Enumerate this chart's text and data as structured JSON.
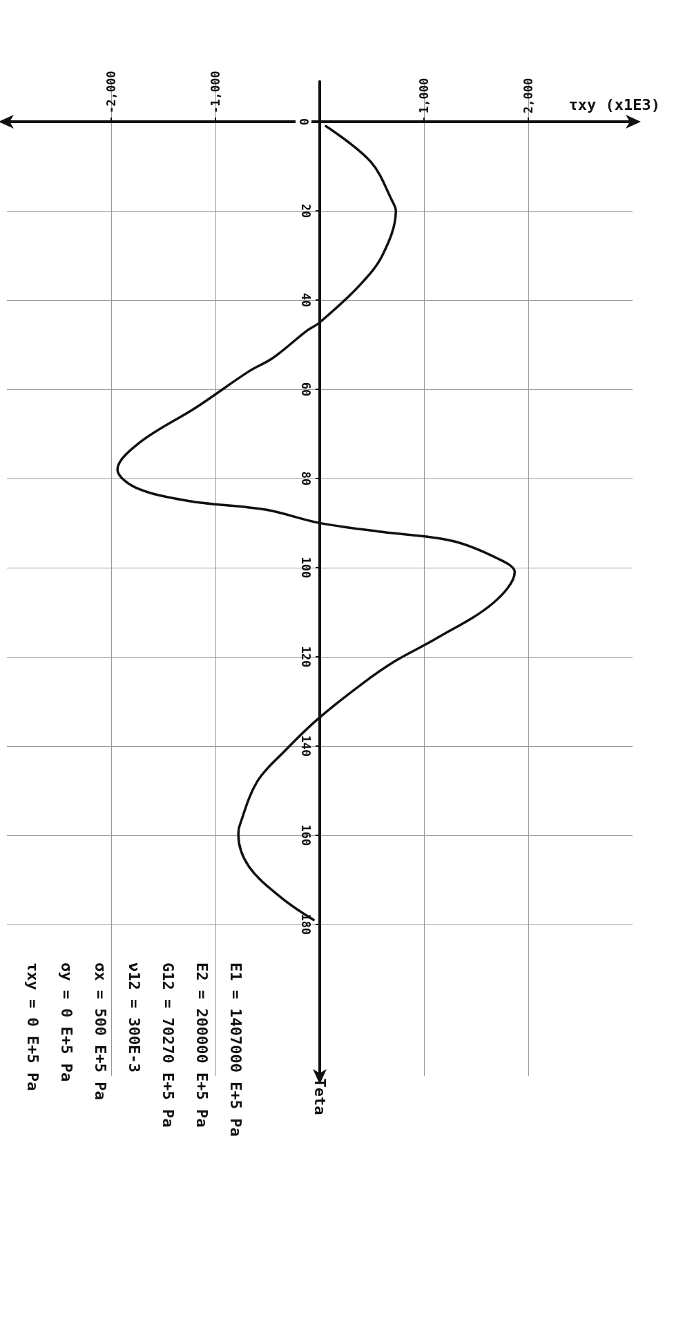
{
  "chart_data": {
    "type": "line",
    "orientation": "horizontal",
    "xlabel": "τxy (x1E3)",
    "ylabel": "Teta",
    "x": [
      1,
      9,
      18,
      20,
      30,
      37,
      45,
      47,
      53,
      56,
      64,
      72,
      78,
      82,
      85,
      87,
      90,
      92,
      94,
      98,
      101,
      108,
      116,
      121,
      126,
      134,
      141,
      148,
      158,
      160,
      167,
      174,
      179
    ],
    "series": [
      {
        "color": "#111111",
        "values": [
          60,
          490,
          700,
          730,
          600,
          370,
          0,
          -130,
          -450,
          -680,
          -1180,
          -1730,
          -1940,
          -1770,
          -1270,
          -520,
          0,
          600,
          1270,
          1710,
          1870,
          1660,
          1110,
          720,
          410,
          -20,
          -330,
          -600,
          -770,
          -780,
          -680,
          -370,
          -60
        ]
      }
    ],
    "xlim": [
      -3000,
      3000
    ],
    "xticks": [
      {
        "value": -2000,
        "label": "-2,000"
      },
      {
        "value": -1000,
        "label": "-1,000"
      },
      {
        "value": 1000,
        "label": "1,000"
      },
      {
        "value": 2000,
        "label": "2,000"
      }
    ],
    "ylim": [
      214,
      -9
    ],
    "yticks": [
      0,
      20,
      40,
      60,
      80,
      100,
      120,
      140,
      160,
      180
    ],
    "grid": true,
    "marker": "none",
    "line_style": "solid",
    "annotations": [
      "E1 = 1407000 E+5 Pa",
      "E2 = 200000 E+5 Pa",
      "G12 = 70270 E+5 Pa",
      "ν12 = 300E-3",
      "σx = 500 E+5 Pa",
      "σy = 0 E+5 Pa",
      "τxy = 0 E+5 Pa"
    ]
  }
}
